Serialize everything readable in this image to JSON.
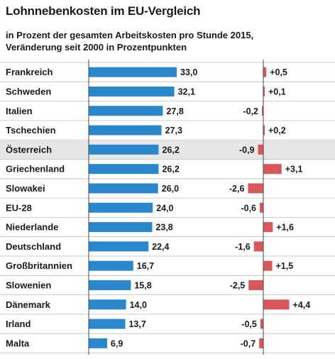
{
  "title": "Lohnnebenkosten im EU-Vergleich",
  "subtitle_lines": [
    "in Prozent der gesamten Arbeitskosten pro Stunde 2015,",
    "Veränderung seit 2000 in Prozentpunkten"
  ],
  "colors": {
    "bar_primary": "#2a87cc",
    "bar_change": "#d9575a",
    "row_highlight": "#e6e6e6",
    "separator": "#bdbdbd",
    "axis": "#444444"
  },
  "chart_data": [
    {
      "type": "bar",
      "orientation": "horizontal",
      "title": "Lohnnebenkosten im EU-Vergleich",
      "subtitle": "in Prozent der gesamten Arbeitskosten pro Stunde 2015",
      "categories": [
        "Frankreich",
        "Schweden",
        "Italien",
        "Tschechien",
        "Österreich",
        "Griechenland",
        "Slowakei",
        "EU-28",
        "Niederlande",
        "Deutschland",
        "Großbritannien",
        "Slowenien",
        "Dänemark",
        "Irland",
        "Malta"
      ],
      "values": [
        33.0,
        32.1,
        27.8,
        27.3,
        26.2,
        26.2,
        26.0,
        24.0,
        23.8,
        22.4,
        16.7,
        15.8,
        14.0,
        13.7,
        6.9
      ],
      "value_labels": [
        "33,0",
        "32,1",
        "27,8",
        "27,3",
        "26,2",
        "26,2",
        "26,0",
        "24,0",
        "23,8",
        "22,4",
        "16,7",
        "15,8",
        "14,0",
        "13,7",
        "6,9"
      ],
      "highlight": [
        "Österreich"
      ],
      "bold_categories": [
        "Österreich",
        "EU-28"
      ],
      "xlim": [
        0,
        33.0
      ]
    },
    {
      "type": "bar",
      "orientation": "horizontal",
      "diverging": true,
      "subtitle": "Veränderung seit 2000 in Prozentpunkten",
      "categories": [
        "Frankreich",
        "Schweden",
        "Italien",
        "Tschechien",
        "Österreich",
        "Griechenland",
        "Slowakei",
        "EU-28",
        "Niederlande",
        "Deutschland",
        "Großbritannien",
        "Slowenien",
        "Dänemark",
        "Irland",
        "Malta"
      ],
      "values": [
        0.5,
        0.1,
        -0.2,
        0.2,
        -0.9,
        3.1,
        -2.6,
        -0.6,
        1.6,
        -1.6,
        1.5,
        -2.5,
        4.4,
        -0.5,
        -0.7
      ],
      "value_labels": [
        "+0,5",
        "+0,1",
        "-0,2",
        "+0,2",
        "-0,9",
        "+3,1",
        "-2,6",
        "-0,6",
        "+1,6",
        "-1,6",
        "+1,5",
        "-2,5",
        "+4,4",
        "-0,5",
        "-0,7"
      ]
    }
  ]
}
